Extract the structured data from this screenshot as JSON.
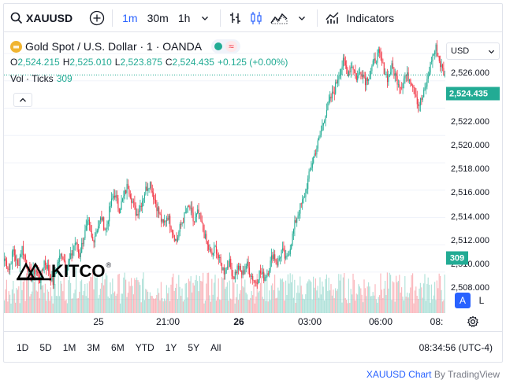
{
  "toolbar": {
    "symbol": "XAUUSD",
    "timeframes": [
      "1m",
      "30m",
      "1h"
    ],
    "active_timeframe": "1m",
    "indicators_label": "Indicators"
  },
  "legend": {
    "title": "Gold Spot / U.S. Dollar · 1 · OANDA",
    "ohlc": [
      {
        "label": "O",
        "value": "2,524.215"
      },
      {
        "label": "H",
        "value": "2,525.010"
      },
      {
        "label": "L",
        "value": "2,523.875"
      },
      {
        "label": "C",
        "value": "2,524.435"
      }
    ],
    "change": "+0.125 (+0.00%)",
    "volume_label": "Vol · Ticks",
    "volume_value": "309",
    "status_color": "#22ab94",
    "alert_symbol": "≈"
  },
  "currency": "USD",
  "price_axis": {
    "labels": [
      "2,526.000",
      "2,522.000",
      "2,520.000",
      "2,518.000",
      "2,516.000",
      "2,514.000",
      "2,512.000",
      "2,510.000",
      "2,508.000"
    ],
    "current_price": "2,524.435",
    "volume_tag": "309",
    "scale_auto": "A",
    "scale_log": "L"
  },
  "time_axis": {
    "labels": [
      "25",
      "21:00",
      "26",
      "03:00",
      "06:00",
      "08:"
    ],
    "bold_index": 2
  },
  "watermark": "KITCO",
  "watermark_mark": "®",
  "ranges": [
    "1D",
    "5D",
    "1M",
    "3M",
    "6M",
    "YTD",
    "1Y",
    "5Y",
    "All"
  ],
  "clock": "08:34:56 (UTC-4)",
  "attribution": {
    "symbol_text": "XAUUSD Chart",
    "by_text": "By TradingView"
  },
  "colors": {
    "up": "#22ab94",
    "down": "#f23645",
    "accent": "#2962ff",
    "gold": "#f0b431"
  },
  "chart_data": {
    "type": "candlestick",
    "symbol": "XAUUSD",
    "interval": "1m",
    "ylim": [
      2507,
      2527.5
    ],
    "y_ticks": [
      2508,
      2510,
      2512,
      2514,
      2516,
      2518,
      2520,
      2522,
      2524,
      2526
    ],
    "last_price": 2524.435,
    "price_path": [
      2511.0,
      2510.2,
      2511.6,
      2510.4,
      2511.8,
      2510.6,
      2509.6,
      2510.2,
      2509.4,
      2510.8,
      2510.2,
      2509.2,
      2510.6,
      2511.4,
      2510.4,
      2511.0,
      2512.2,
      2511.2,
      2512.6,
      2513.6,
      2512.2,
      2513.2,
      2514.0,
      2513.0,
      2514.8,
      2515.8,
      2514.6,
      2515.4,
      2516.4,
      2515.2,
      2514.2,
      2515.0,
      2516.0,
      2516.6,
      2515.4,
      2514.4,
      2513.4,
      2514.2,
      2513.2,
      2512.2,
      2513.4,
      2514.2,
      2514.8,
      2513.6,
      2514.4,
      2513.2,
      2512.0,
      2511.2,
      2511.8,
      2510.6,
      2510.0,
      2510.8,
      2509.6,
      2510.4,
      2509.8,
      2510.6,
      2509.8,
      2509.2,
      2510.0,
      2509.6,
      2510.2,
      2511.4,
      2510.6,
      2511.6,
      2510.8,
      2512.0,
      2513.6,
      2514.6,
      2515.4,
      2516.8,
      2518.2,
      2519.2,
      2520.4,
      2521.8,
      2522.6,
      2523.4,
      2524.6,
      2525.4,
      2524.6,
      2525.2,
      2524.2,
      2524.8,
      2524.0,
      2524.6,
      2525.4,
      2526.0,
      2525.0,
      2524.2,
      2525.0,
      2524.2,
      2523.6,
      2524.4,
      2524.2,
      2523.6,
      2522.2,
      2522.8,
      2524.0,
      2525.6,
      2526.4,
      2525.2,
      2524.4
    ],
    "volume_max": 30
  }
}
